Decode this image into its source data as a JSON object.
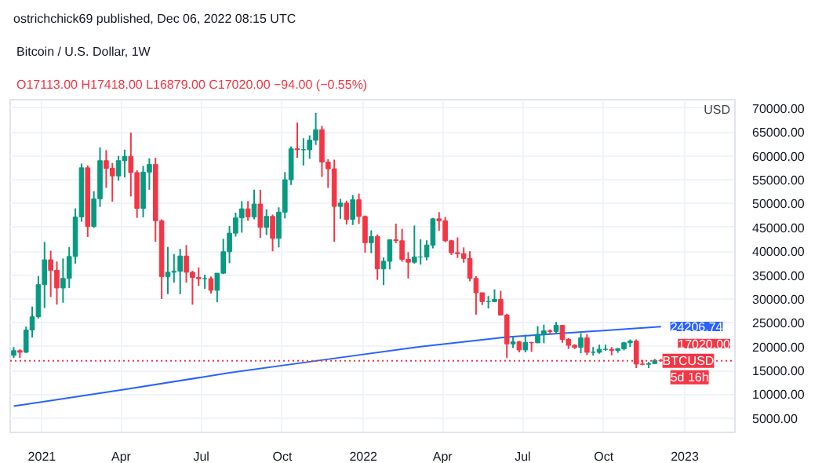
{
  "chart_data": {
    "type": "candlestick",
    "title": "Bitcoin / U.S. Dollar, 1W",
    "subtitle": "O17113.00 H17418.00 L16879.00 C17020.00 −94.00 (−0.55%)",
    "ylabel": "USD",
    "annotations": [
      "ostrichchick69 published, Dec 06, 2022 08:15 UTC",
      {
        "text": "24206.74",
        "x": "2022-12-05",
        "y": 24206.74
      },
      {
        "text": "BTCUSD",
        "x": "2023-01-05",
        "y": 17020
      },
      {
        "text": "5d 16h",
        "x": "2022-12-05",
        "y": 17020
      }
    ],
    "x": [
      "2020-11-30",
      "2020-12-07",
      "2020-12-14",
      "2020-12-21",
      "2020-12-28",
      "2021-01-04",
      "2021-01-11",
      "2021-01-18",
      "2021-01-25",
      "2021-02-01",
      "2021-02-08",
      "2021-02-15",
      "2021-02-22",
      "2021-03-01",
      "2021-03-08",
      "2021-03-15",
      "2021-03-22",
      "2021-03-29",
      "2021-04-05",
      "2021-04-12",
      "2021-04-19",
      "2021-04-26",
      "2021-05-03",
      "2021-05-10",
      "2021-05-17",
      "2021-05-24",
      "2021-05-31",
      "2021-06-07",
      "2021-06-14",
      "2021-06-21",
      "2021-06-28",
      "2021-07-05",
      "2021-07-12",
      "2021-07-19",
      "2021-07-26",
      "2021-08-02",
      "2021-08-09",
      "2021-08-16",
      "2021-08-23",
      "2021-08-30",
      "2021-09-06",
      "2021-09-13",
      "2021-09-20",
      "2021-09-27",
      "2021-10-04",
      "2021-10-11",
      "2021-10-18",
      "2021-10-25",
      "2021-11-01",
      "2021-11-08",
      "2021-11-15",
      "2021-11-22",
      "2021-11-29",
      "2021-12-06",
      "2021-12-13",
      "2021-12-20",
      "2021-12-27",
      "2022-01-03",
      "2022-01-10",
      "2022-01-17",
      "2022-01-24",
      "2022-01-31",
      "2022-02-07",
      "2022-02-14",
      "2022-02-21",
      "2022-02-28",
      "2022-03-07",
      "2022-03-14",
      "2022-03-21",
      "2022-03-28",
      "2022-04-04",
      "2022-04-11",
      "2022-04-18",
      "2022-04-25",
      "2022-05-02",
      "2022-05-09",
      "2022-05-16",
      "2022-05-23",
      "2022-05-30",
      "2022-06-06",
      "2022-06-13",
      "2022-06-20",
      "2022-06-27",
      "2022-07-04",
      "2022-07-11",
      "2022-07-18",
      "2022-07-25",
      "2022-08-01",
      "2022-08-08",
      "2022-08-15",
      "2022-08-22",
      "2022-08-29",
      "2022-09-05",
      "2022-09-12",
      "2022-09-19",
      "2022-09-26",
      "2022-10-03",
      "2022-10-10",
      "2022-10-17",
      "2022-10-24",
      "2022-10-31",
      "2022-11-07",
      "2022-11-14",
      "2022-11-21",
      "2022-11-28",
      "2022-12-05"
    ],
    "ohlc": [
      [
        18180,
        19900,
        17600,
        19150
      ],
      [
        19150,
        19420,
        17600,
        18800
      ],
      [
        18800,
        24200,
        18700,
        23480
      ],
      [
        23480,
        28400,
        21900,
        26250
      ],
      [
        26250,
        34800,
        25900,
        33000
      ],
      [
        33000,
        41950,
        28100,
        38200
      ],
      [
        38200,
        40100,
        30400,
        36000
      ],
      [
        36000,
        37850,
        28800,
        32300
      ],
      [
        32300,
        38500,
        29200,
        34300
      ],
      [
        34300,
        40900,
        32300,
        38900
      ],
      [
        38900,
        49000,
        37400,
        47200
      ],
      [
        47200,
        58400,
        46200,
        57500
      ],
      [
        57500,
        58000,
        43000,
        45200
      ],
      [
        45200,
        52600,
        44900,
        51000
      ],
      [
        51000,
        61800,
        49300,
        59000
      ],
      [
        59000,
        61200,
        53300,
        57400
      ],
      [
        57400,
        58500,
        50400,
        55800
      ],
      [
        55800,
        60000,
        54800,
        59000
      ],
      [
        59000,
        61300,
        55500,
        59900
      ],
      [
        59900,
        64900,
        51500,
        56500
      ],
      [
        56500,
        57000,
        47000,
        49000
      ],
      [
        49000,
        57900,
        47100,
        56600
      ],
      [
        56600,
        59500,
        52900,
        58200
      ],
      [
        58200,
        59600,
        42000,
        46400
      ],
      [
        46400,
        46700,
        30000,
        34700
      ],
      [
        34700,
        40900,
        31000,
        35600
      ],
      [
        35600,
        39400,
        33400,
        35800
      ],
      [
        35800,
        40500,
        31000,
        39000
      ],
      [
        39000,
        41300,
        33400,
        35600
      ],
      [
        35600,
        35900,
        28800,
        34500
      ],
      [
        34500,
        36600,
        32700,
        34250
      ],
      [
        34250,
        35100,
        32100,
        34250
      ],
      [
        34250,
        34700,
        31100,
        31800
      ],
      [
        31800,
        35400,
        29300,
        35400
      ],
      [
        35400,
        42600,
        35200,
        39900
      ],
      [
        39900,
        45300,
        37500,
        43800
      ],
      [
        43800,
        48100,
        43100,
        47000
      ],
      [
        47000,
        50500,
        43900,
        48900
      ],
      [
        48900,
        50500,
        46400,
        47200
      ],
      [
        47200,
        52900,
        46700,
        49900
      ],
      [
        49900,
        52900,
        42800,
        45000
      ],
      [
        45000,
        48800,
        43400,
        47300
      ],
      [
        47300,
        47700,
        40000,
        42700
      ],
      [
        42700,
        49200,
        40800,
        48200
      ],
      [
        48200,
        56600,
        46900,
        55000
      ],
      [
        55000,
        62000,
        53900,
        61500
      ],
      [
        61500,
        67000,
        59600,
        61300
      ],
      [
        61300,
        63700,
        58000,
        61300
      ],
      [
        61300,
        64300,
        59400,
        63300
      ],
      [
        63300,
        69000,
        62300,
        65500
      ],
      [
        65500,
        66300,
        55600,
        58700
      ],
      [
        58700,
        59300,
        53300,
        57300
      ],
      [
        57300,
        59200,
        42000,
        49400
      ],
      [
        49400,
        51000,
        46800,
        50100
      ],
      [
        50100,
        50600,
        45600,
        46700
      ],
      [
        46700,
        51800,
        45500,
        50800
      ],
      [
        50800,
        52100,
        45700,
        47300
      ],
      [
        47300,
        47500,
        39700,
        41800
      ],
      [
        41800,
        44400,
        39600,
        43100
      ],
      [
        43100,
        43500,
        34000,
        36300
      ],
      [
        36300,
        38700,
        32900,
        37900
      ],
      [
        37900,
        42400,
        36200,
        42400
      ],
      [
        42400,
        45800,
        41700,
        42200
      ],
      [
        42200,
        44700,
        37800,
        38300
      ],
      [
        38300,
        39800,
        34300,
        37700
      ],
      [
        37700,
        45400,
        37400,
        38800
      ],
      [
        38800,
        42500,
        37200,
        38800
      ],
      [
        38800,
        42300,
        38100,
        41300
      ],
      [
        41300,
        47000,
        40600,
        46800
      ],
      [
        46800,
        48200,
        44300,
        46400
      ],
      [
        46400,
        47200,
        41900,
        42200
      ],
      [
        42200,
        42400,
        39200,
        39700
      ],
      [
        39700,
        42900,
        38600,
        39500
      ],
      [
        39500,
        40800,
        37600,
        38500
      ],
      [
        38500,
        40000,
        33700,
        34300
      ],
      [
        34300,
        34800,
        26700,
        31300
      ],
      [
        31300,
        31300,
        28700,
        29450
      ],
      [
        29450,
        30600,
        28000,
        29450
      ],
      [
        29450,
        32000,
        29300,
        29900
      ],
      [
        29900,
        31700,
        26600,
        26600
      ],
      [
        26600,
        26900,
        17600,
        20550
      ],
      [
        20550,
        21900,
        19700,
        21000
      ],
      [
        21000,
        21200,
        18800,
        19300
      ],
      [
        19300,
        22500,
        18800,
        20850
      ],
      [
        20850,
        21000,
        18900,
        20800
      ],
      [
        20800,
        24300,
        20700,
        22580
      ],
      [
        22580,
        24600,
        20700,
        23300
      ],
      [
        23300,
        23600,
        22600,
        23170
      ],
      [
        23170,
        25200,
        22700,
        24450
      ],
      [
        24450,
        24450,
        20800,
        21520
      ],
      [
        21520,
        21800,
        19500,
        20280
      ],
      [
        20280,
        20500,
        19500,
        19830
      ],
      [
        19830,
        22800,
        18600,
        21820
      ],
      [
        21820,
        22600,
        18200,
        18800
      ],
      [
        18800,
        19900,
        18100,
        18800
      ],
      [
        18800,
        20400,
        18500,
        19420
      ],
      [
        19420,
        20400,
        19100,
        19420
      ],
      [
        19420,
        19900,
        18200,
        19200
      ],
      [
        19200,
        19700,
        18700,
        19570
      ],
      [
        19570,
        21000,
        19200,
        20800
      ],
      [
        20800,
        21500,
        19900,
        21150
      ],
      [
        21150,
        21500,
        15500,
        16330
      ],
      [
        16330,
        17200,
        16100,
        16290
      ],
      [
        16290,
        16800,
        15480,
        16450
      ],
      [
        16450,
        17400,
        16400,
        17110
      ],
      [
        17113,
        17418,
        16879,
        17020
      ]
    ],
    "series": [
      {
        "type": "line",
        "color": "#2962ff",
        "x": [
          "2020-11-30",
          "2021-04-05",
          "2021-08-02",
          "2021-11-08",
          "2022-03-07",
          "2022-06-13",
          "2022-12-05"
        ],
        "values": [
          7500,
          11000,
          14500,
          17000,
          20000,
          22000,
          24200
        ]
      }
    ],
    "ref_lines": [
      {
        "axis": "y",
        "value": 17020,
        "label": "17020.00",
        "color": "#f23645",
        "line_style": "dotted"
      }
    ],
    "xlim": [
      "2020-11-26",
      "2023-02-27"
    ],
    "ylim": [
      2000,
      71800
    ],
    "xticks": [
      {
        "value": "2021-01-01",
        "label": "2021"
      },
      {
        "value": "2021-04-01",
        "label": "Apr"
      },
      {
        "value": "2021-07-01",
        "label": "Jul"
      },
      {
        "value": "2021-10-01",
        "label": "Oct"
      },
      {
        "value": "2022-01-01",
        "label": "2022"
      },
      {
        "value": "2022-04-01",
        "label": "Apr"
      },
      {
        "value": "2022-07-01",
        "label": "Jul"
      },
      {
        "value": "2022-10-01",
        "label": "Oct"
      },
      {
        "value": "2023-01-01",
        "label": "2023"
      }
    ],
    "yticks": [
      {
        "value": 5000,
        "label": "5000.00"
      },
      {
        "value": 10000,
        "label": "10000.00"
      },
      {
        "value": 15000,
        "label": "15000.00"
      },
      {
        "value": 20000,
        "label": "20000.00"
      },
      {
        "value": 25000,
        "label": "25000.00"
      },
      {
        "value": 30000,
        "label": "30000.00"
      },
      {
        "value": 35000,
        "label": "35000.00"
      },
      {
        "value": 40000,
        "label": "40000.00"
      },
      {
        "value": 45000,
        "label": "45000.00"
      },
      {
        "value": 50000,
        "label": "50000.00"
      },
      {
        "value": 55000,
        "label": "55000.00"
      },
      {
        "value": 60000,
        "label": "60000.00"
      },
      {
        "value": 65000,
        "label": "65000.00"
      },
      {
        "value": 70000,
        "label": "70000.00"
      }
    ],
    "grid": true
  }
}
